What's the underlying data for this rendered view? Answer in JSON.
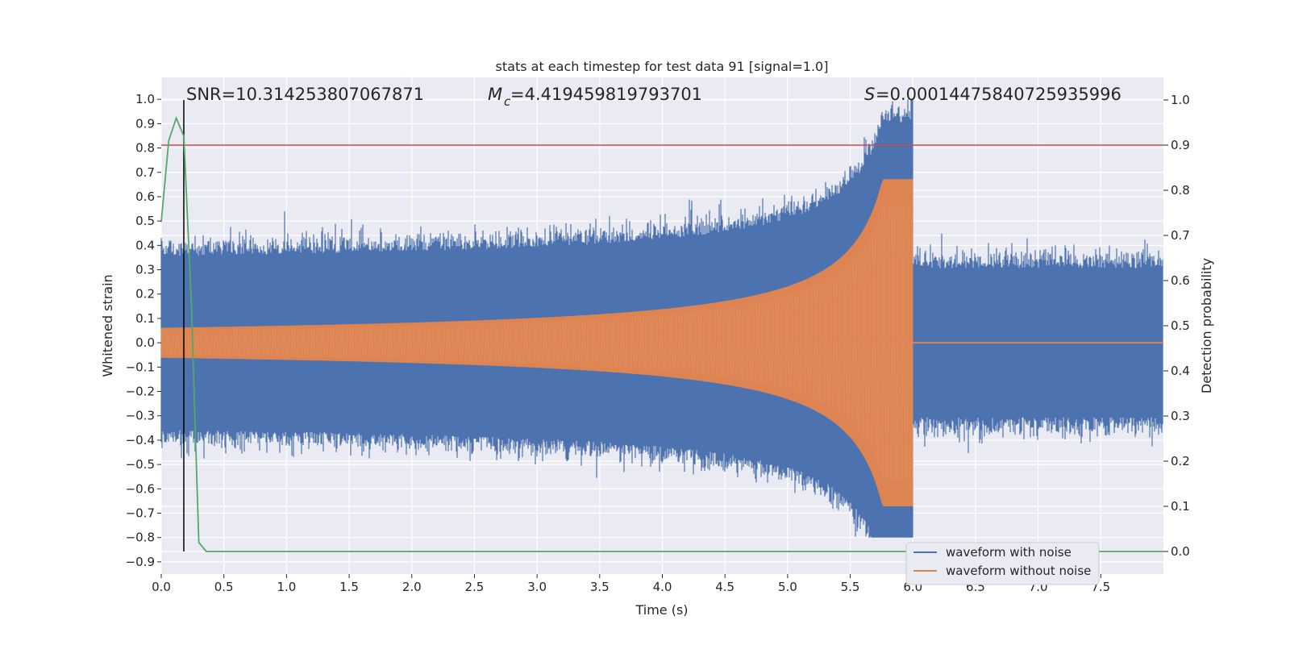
{
  "chart_data": {
    "type": "line",
    "title": "stats at each timestep for test data 91 [signal=1.0]",
    "xlabel": "Time (s)",
    "ylabel": "Whitened strain",
    "y2label": "Detection probability",
    "xlim": [
      0.0,
      8.0
    ],
    "ylim": [
      -0.95,
      1.09
    ],
    "y2lim": [
      -0.05,
      1.05
    ],
    "x_ticks": [
      0.0,
      0.5,
      1.0,
      1.5,
      2.0,
      2.5,
      3.0,
      3.5,
      4.0,
      4.5,
      5.0,
      5.5,
      6.0,
      6.5,
      7.0,
      7.5
    ],
    "x_tick_labels": [
      "0.0",
      "0.5",
      "1.0",
      "1.5",
      "2.0",
      "2.5",
      "3.0",
      "3.5",
      "4.0",
      "4.5",
      "5.0",
      "5.5",
      "6.0",
      "6.5",
      "7.0",
      "7.5"
    ],
    "y_ticks": [
      1.0,
      0.9,
      0.8,
      0.7,
      0.6,
      0.5,
      0.4,
      0.3,
      0.2,
      0.1,
      0.0,
      -0.1,
      -0.2,
      -0.3,
      -0.4,
      -0.5,
      -0.6,
      -0.7,
      -0.8,
      -0.9
    ],
    "y_tick_labels": [
      "1.0",
      "0.9",
      "0.8",
      "0.7",
      "0.6",
      "0.5",
      "0.4",
      "0.3",
      "0.2",
      "0.1",
      "0.0",
      "−0.1",
      "−0.2",
      "−0.3",
      "−0.4",
      "−0.5",
      "−0.6",
      "−0.7",
      "−0.8",
      "−0.9"
    ],
    "y2_ticks": [
      1.0,
      0.9,
      0.8,
      0.7,
      0.6,
      0.5,
      0.4,
      0.3,
      0.2,
      0.1,
      0.0
    ],
    "y2_tick_labels": [
      "1.0",
      "0.9",
      "0.8",
      "0.7",
      "0.6",
      "0.5",
      "0.4",
      "0.3",
      "0.2",
      "0.1",
      "0.0"
    ],
    "annotations": {
      "snr": "SNR=10.314253807067871",
      "mc": "=4.419459819793701",
      "s": "=0.00014475840725935996"
    },
    "merger_time": 6.0,
    "signal_start": 0.0,
    "noise_amplitude": 0.42,
    "peak_strain": 1.0,
    "min_strain": -0.8,
    "chirp_amplitude_start": 0.06,
    "chirp_amplitude_peak": 0.67,
    "detection_marker_x": 0.18,
    "threshold_probability": 0.9,
    "detection_probability": {
      "x": [
        0.0,
        0.06,
        0.12,
        0.18,
        0.24,
        0.3,
        0.36,
        0.5,
        1.0,
        2.0,
        3.0,
        4.0,
        5.0,
        6.0,
        7.0,
        8.0
      ],
      "y": [
        0.73,
        0.91,
        0.96,
        0.92,
        0.55,
        0.02,
        0.0,
        0.0,
        0.0,
        0.0,
        0.0,
        0.0,
        0.0,
        0.0,
        0.0,
        0.0
      ]
    },
    "series": [
      {
        "name": "waveform with noise",
        "color": "#4c72b0"
      },
      {
        "name": "waveform without noise",
        "color": "#dd8452"
      },
      {
        "name": "detection probability",
        "color": "#55a868"
      },
      {
        "name": "threshold",
        "color": "#c44e52"
      },
      {
        "name": "detection marker",
        "color": "#000000"
      }
    ],
    "legend": {
      "position": "lower-right",
      "items": [
        "waveform with noise",
        "waveform without noise"
      ]
    },
    "grid": true,
    "background": "#eaeaf2"
  }
}
